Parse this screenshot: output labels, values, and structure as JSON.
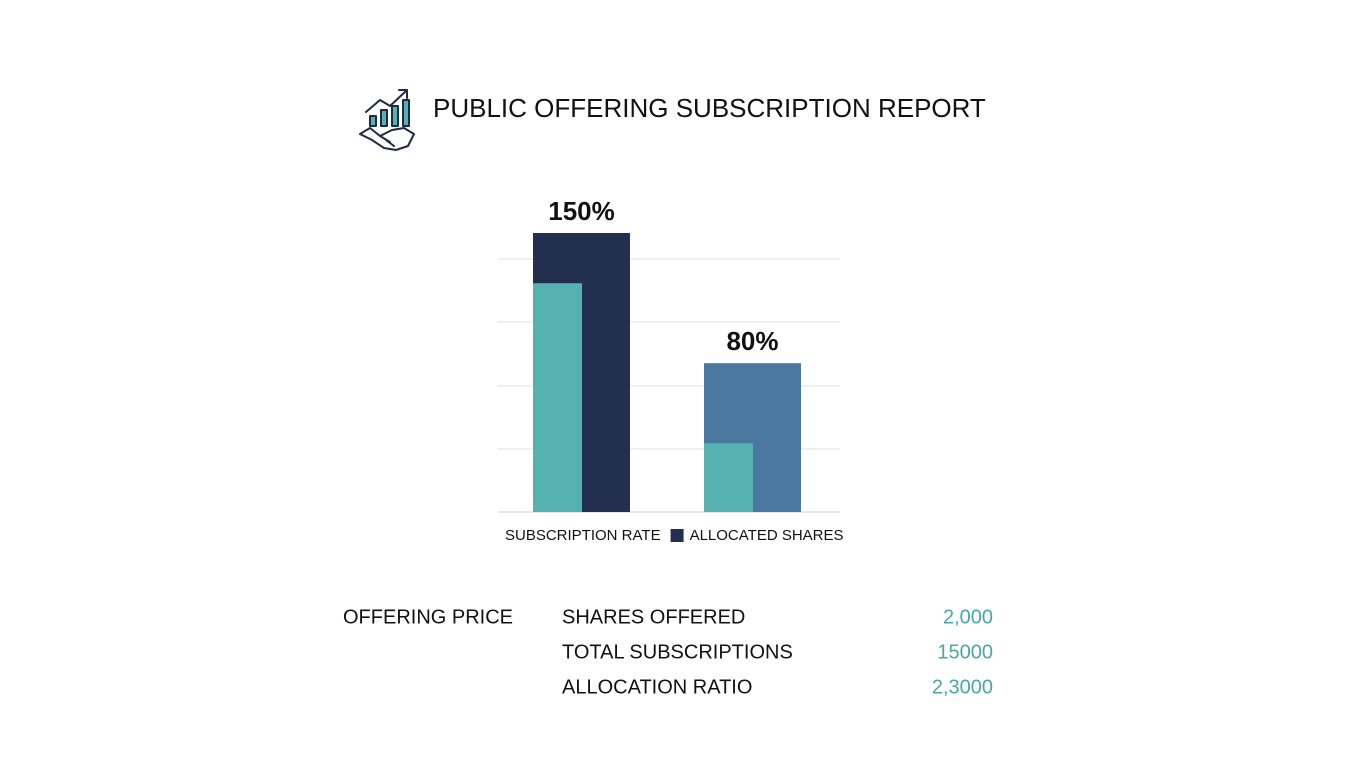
{
  "header": {
    "title": "PUBLIC OFFERING SUBSCRIPTION REPORT"
  },
  "chart_data": {
    "type": "bar",
    "categories": [
      null,
      null
    ],
    "series": [
      {
        "name": "SUBSCRIPTION RATE",
        "color": "#55b2b0",
        "swatch": false,
        "values": [
          123,
          37
        ]
      },
      {
        "name": "ALLOCATED SHARES",
        "color": "#232f4f",
        "swatch": true,
        "colors": [
          "#232f4f",
          "#4a78a0"
        ],
        "values": [
          150,
          80
        ],
        "value_labels": [
          "150%",
          "80%"
        ]
      }
    ],
    "grid": true
  },
  "details": {
    "heading": "OFFERING PRICE",
    "rows": [
      [
        "SHARES OFFERED",
        "2,000"
      ],
      [
        "TOTAL SUBSCRIPTIONS",
        "15000"
      ],
      [
        "ALLOCATION RATIO",
        "2,3000"
      ]
    ]
  }
}
